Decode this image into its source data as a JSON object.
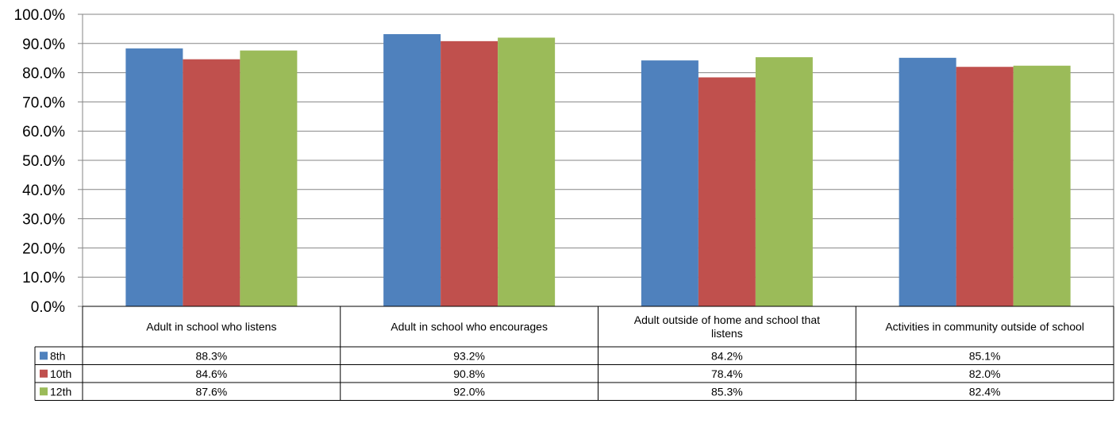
{
  "chart_data": {
    "type": "bar",
    "categories": [
      "Adult in school who listens",
      "Adult in school who encourages",
      "Adult outside of home and school that listens",
      "Activities in community outside of school"
    ],
    "series": [
      {
        "name": "8th",
        "color": "#4F81BD",
        "values": [
          88.3,
          93.2,
          84.2,
          85.1
        ],
        "labels": [
          "88.3%",
          "93.2%",
          "84.2%",
          "85.1%"
        ]
      },
      {
        "name": "10th",
        "color": "#C0504D",
        "values": [
          84.6,
          90.8,
          78.4,
          82.0
        ],
        "labels": [
          "84.6%",
          "90.8%",
          "78.4%",
          "82.0%"
        ]
      },
      {
        "name": "12th",
        "color": "#9BBB59",
        "values": [
          87.6,
          92.0,
          85.3,
          82.4
        ],
        "labels": [
          "87.6%",
          "92.0%",
          "85.3%",
          "82.4%"
        ]
      }
    ],
    "yticks": [
      "0.0%",
      "10.0%",
      "20.0%",
      "30.0%",
      "40.0%",
      "50.0%",
      "60.0%",
      "70.0%",
      "80.0%",
      "90.0%",
      "100.0%"
    ],
    "ylim": [
      0,
      100
    ],
    "grid": true,
    "legend": "data-table"
  }
}
